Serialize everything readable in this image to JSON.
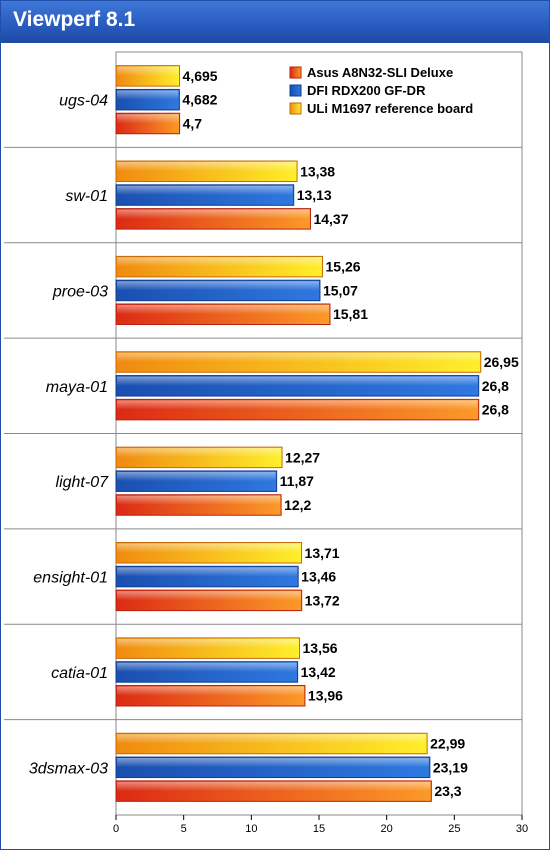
{
  "title": "Viewperf 8.1",
  "chart_data": {
    "type": "bar",
    "orientation": "horizontal",
    "title": "Viewperf 8.1",
    "categories": [
      "ugs-04",
      "sw-01",
      "proe-03",
      "maya-01",
      "light-07",
      "ensight-01",
      "catia-01",
      "3dsmax-03"
    ],
    "series": [
      {
        "name": "ULi M1697 reference board",
        "values": [
          4.695,
          13.38,
          15.26,
          26.95,
          12.27,
          13.71,
          13.56,
          22.99
        ],
        "labels": [
          "4,695",
          "13,38",
          "15,26",
          "26,95",
          "12,27",
          "13,71",
          "13,56",
          "22,99"
        ]
      },
      {
        "name": "DFI RDX200 GF-DR",
        "values": [
          4.682,
          13.13,
          15.07,
          26.8,
          11.87,
          13.46,
          13.42,
          23.19
        ],
        "labels": [
          "4,682",
          "13,13",
          "15,07",
          "26,8",
          "11,87",
          "13,46",
          "13,42",
          "23,19"
        ]
      },
      {
        "name": "Asus A8N32-SLI Deluxe",
        "values": [
          4.7,
          14.37,
          15.81,
          26.8,
          12.2,
          13.72,
          13.96,
          23.3
        ],
        "labels": [
          "4,7",
          "14,37",
          "15,81",
          "26,8",
          "12,2",
          "13,72",
          "13,96",
          "23,3"
        ]
      }
    ],
    "legend": [
      {
        "name": "Asus A8N32-SLI Deluxe",
        "color": "#e8461c"
      },
      {
        "name": "DFI RDX200 GF-DR",
        "color": "#1f5fc8"
      },
      {
        "name": "ULi M1697 reference board",
        "color": "#f7b012"
      }
    ],
    "xlim": [
      0,
      30
    ],
    "xticks": [
      0,
      5,
      10,
      15,
      20,
      25,
      30
    ],
    "grid": false,
    "legend_position": "top-right"
  }
}
